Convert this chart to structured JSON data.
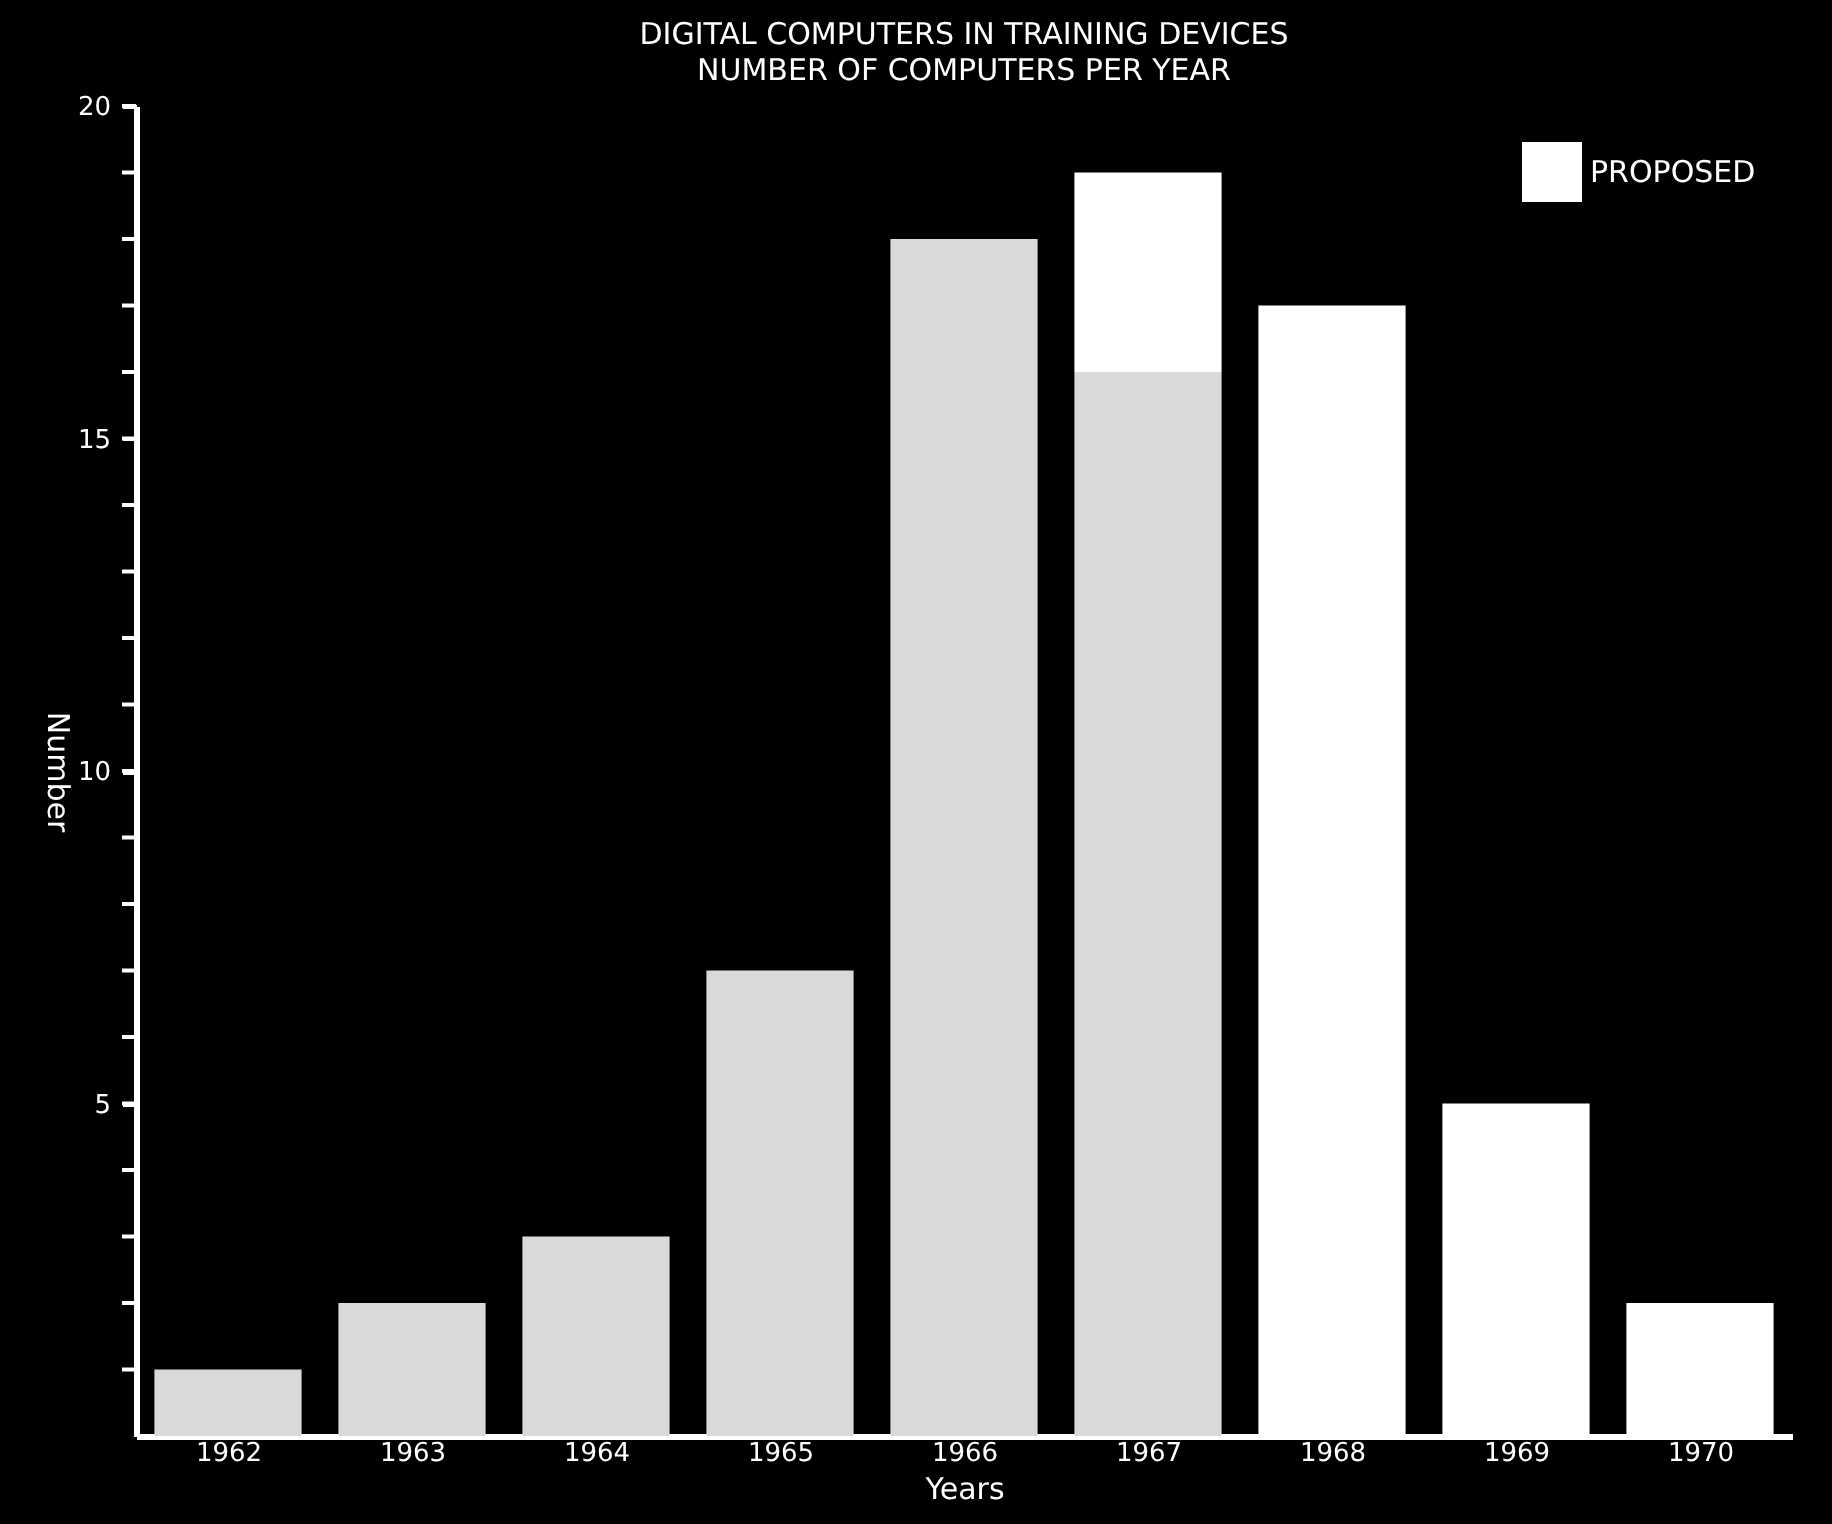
{
  "chart_data": {
    "type": "bar",
    "title": "DIGITAL COMPUTERS IN TRAINING DEVICES",
    "subtitle": "NUMBER OF COMPUTERS PER YEAR",
    "xlabel": "Years",
    "ylabel": "Number",
    "categories": [
      "1962",
      "1963",
      "1964",
      "1965",
      "1966",
      "1967",
      "1968",
      "1969",
      "1970"
    ],
    "stacked": true,
    "series": [
      {
        "color": "#d9d9d9",
        "values": [
          1,
          2,
          3,
          7,
          18,
          16,
          null,
          null,
          null
        ]
      },
      {
        "name": "PROPOSED",
        "color": "#ffffff",
        "values": [
          null,
          null,
          null,
          null,
          null,
          3,
          17,
          5,
          2
        ]
      }
    ],
    "ylim": [
      0,
      20
    ],
    "yticks": [
      {
        "value": 1,
        "label": null
      },
      {
        "value": 2,
        "label": null
      },
      {
        "value": 3,
        "label": null
      },
      {
        "value": 4,
        "label": null
      },
      5,
      {
        "value": 6,
        "label": null
      },
      {
        "value": 7,
        "label": null
      },
      {
        "value": 8,
        "label": null
      },
      {
        "value": 9,
        "label": null
      },
      10,
      {
        "value": 11,
        "label": null
      },
      {
        "value": 12,
        "label": null
      },
      {
        "value": 13,
        "label": null
      },
      {
        "value": 14,
        "label": null
      },
      15,
      {
        "value": 16,
        "label": null
      },
      {
        "value": 17,
        "label": null
      },
      {
        "value": 18,
        "label": null
      },
      {
        "value": 19,
        "label": null
      },
      20
    ],
    "grid": false,
    "legend": "top right"
  }
}
